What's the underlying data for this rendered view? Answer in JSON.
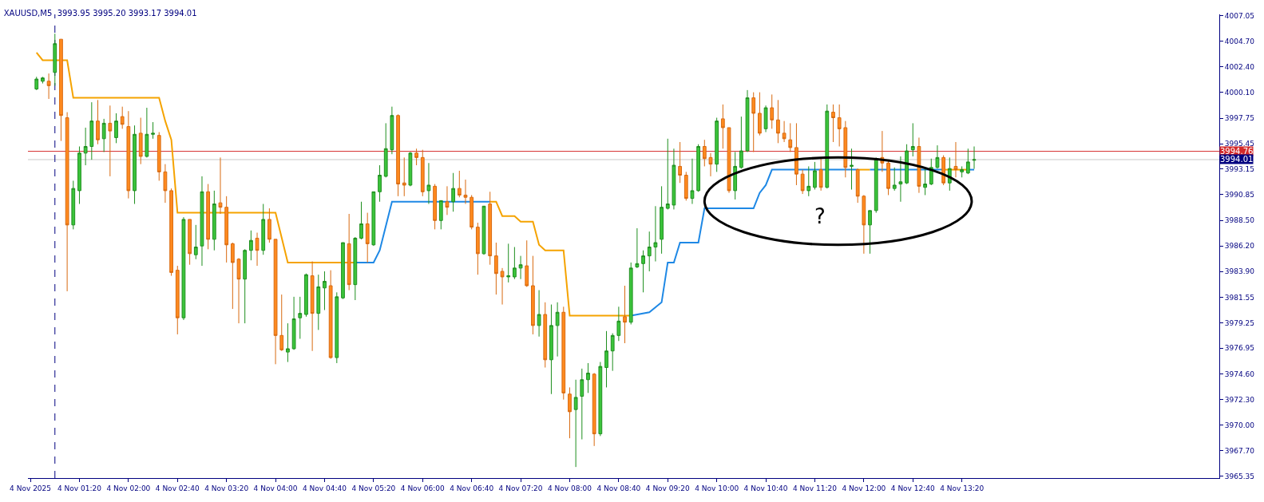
{
  "chart_data": {
    "type": "candlestick",
    "title": "XAUUSD,M5  3993.95 3995.20 3993.17 3994.01",
    "x": [
      "2025-11-04T00:45",
      "2025-11-04T00:50",
      "2025-11-04T00:55",
      "2025-11-04T01:00",
      "2025-11-04T01:05",
      "2025-11-04T01:10",
      "2025-11-04T01:15",
      "2025-11-04T01:20",
      "2025-11-04T01:25",
      "2025-11-04T01:30",
      "2025-11-04T01:35",
      "2025-11-04T01:40",
      "2025-11-04T01:45",
      "2025-11-04T01:50",
      "2025-11-04T01:55",
      "2025-11-04T02:00",
      "2025-11-04T02:05",
      "2025-11-04T02:10",
      "2025-11-04T02:15",
      "2025-11-04T02:20",
      "2025-11-04T02:25",
      "2025-11-04T02:30",
      "2025-11-04T02:35",
      "2025-11-04T02:40",
      "2025-11-04T02:45",
      "2025-11-04T02:50",
      "2025-11-04T02:55",
      "2025-11-04T03:00",
      "2025-11-04T03:05",
      "2025-11-04T03:10",
      "2025-11-04T03:15",
      "2025-11-04T03:20",
      "2025-11-04T03:25",
      "2025-11-04T03:30",
      "2025-11-04T03:35",
      "2025-11-04T03:40",
      "2025-11-04T03:45",
      "2025-11-04T03:50",
      "2025-11-04T03:55",
      "2025-11-04T04:00",
      "2025-11-04T04:05",
      "2025-11-04T04:10",
      "2025-11-04T04:15",
      "2025-11-04T04:20",
      "2025-11-04T04:25",
      "2025-11-04T04:30",
      "2025-11-04T04:35",
      "2025-11-04T04:40",
      "2025-11-04T04:45",
      "2025-11-04T04:50",
      "2025-11-04T04:55",
      "2025-11-04T05:00",
      "2025-11-04T05:05",
      "2025-11-04T05:10",
      "2025-11-04T05:15",
      "2025-11-04T05:20",
      "2025-11-04T05:25",
      "2025-11-04T05:30",
      "2025-11-04T05:35",
      "2025-11-04T05:40",
      "2025-11-04T05:45",
      "2025-11-04T05:50",
      "2025-11-04T05:55",
      "2025-11-04T06:00",
      "2025-11-04T06:05",
      "2025-11-04T06:10",
      "2025-11-04T06:15",
      "2025-11-04T06:20",
      "2025-11-04T06:25",
      "2025-11-04T06:30",
      "2025-11-04T06:35",
      "2025-11-04T06:40",
      "2025-11-04T06:45",
      "2025-11-04T06:50",
      "2025-11-04T06:55",
      "2025-11-04T07:00",
      "2025-11-04T07:05",
      "2025-11-04T07:10",
      "2025-11-04T07:15",
      "2025-11-04T07:20",
      "2025-11-04T07:25",
      "2025-11-04T07:30",
      "2025-11-04T07:35",
      "2025-11-04T07:40",
      "2025-11-04T07:45",
      "2025-11-04T07:50",
      "2025-11-04T07:55",
      "2025-11-04T08:00",
      "2025-11-04T08:05",
      "2025-11-04T08:10",
      "2025-11-04T08:15",
      "2025-11-04T08:20",
      "2025-11-04T08:25",
      "2025-11-04T08:30",
      "2025-11-04T08:35",
      "2025-11-04T08:40",
      "2025-11-04T08:45",
      "2025-11-04T08:50",
      "2025-11-04T08:55",
      "2025-11-04T09:00",
      "2025-11-04T09:05",
      "2025-11-04T09:10",
      "2025-11-04T09:15",
      "2025-11-04T09:20",
      "2025-11-04T09:25",
      "2025-11-04T09:30",
      "2025-11-04T09:35",
      "2025-11-04T09:40",
      "2025-11-04T09:45",
      "2025-11-04T09:50",
      "2025-11-04T09:55",
      "2025-11-04T10:00",
      "2025-11-04T10:05",
      "2025-11-04T10:10",
      "2025-11-04T10:15",
      "2025-11-04T10:20",
      "2025-11-04T10:25",
      "2025-11-04T10:30",
      "2025-11-04T10:35",
      "2025-11-04T10:40",
      "2025-11-04T10:45",
      "2025-11-04T10:50",
      "2025-11-04T10:55",
      "2025-11-04T11:00",
      "2025-11-04T11:05",
      "2025-11-04T11:10",
      "2025-11-04T11:15",
      "2025-11-04T11:20",
      "2025-11-04T11:25",
      "2025-11-04T11:30",
      "2025-11-04T11:35",
      "2025-11-04T11:40",
      "2025-11-04T11:45",
      "2025-11-04T11:50",
      "2025-11-04T11:55",
      "2025-11-04T12:00",
      "2025-11-04T12:05",
      "2025-11-04T12:10",
      "2025-11-04T12:15",
      "2025-11-04T12:20",
      "2025-11-04T12:25",
      "2025-11-04T12:30",
      "2025-11-04T12:35",
      "2025-11-04T12:40",
      "2025-11-04T12:45",
      "2025-11-04T12:50",
      "2025-11-04T12:55",
      "2025-11-04T13:00",
      "2025-11-04T13:05",
      "2025-11-04T13:10",
      "2025-11-04T13:15",
      "2025-11-04T13:20",
      "2025-11-04T13:25",
      "2025-11-04T13:30"
    ],
    "ohlc": [
      [
        4000.4,
        4001.5,
        4000.3,
        4001.3
      ],
      [
        4001.1,
        4001.5,
        4000.9,
        4001.4
      ],
      [
        4001.1,
        4001.8,
        3999.5,
        4000.7
      ],
      [
        4001.9,
        4005.4,
        4000.7,
        4004.5
      ],
      [
        4004.9,
        4004.9,
        3995.7,
        3998.0
      ],
      [
        3997.8,
        3998.3,
        3982.1,
        3988.1
      ],
      [
        3988.1,
        3992.1,
        3987.7,
        3991.4
      ],
      [
        3991.2,
        3995.2,
        3990.0,
        3994.6
      ],
      [
        3994.6,
        3996.9,
        3993.5,
        3995.2
      ],
      [
        3995.2,
        3999.2,
        3994.0,
        3997.5
      ],
      [
        3997.5,
        3999.4,
        3995.4,
        3995.8
      ],
      [
        3995.9,
        3997.7,
        3994.7,
        3997.3
      ],
      [
        3997.3,
        3998.9,
        3992.5,
        3996.6
      ],
      [
        3996.0,
        3998.2,
        3995.5,
        3997.5
      ],
      [
        3997.9,
        3998.8,
        3996.8,
        3997.2
      ],
      [
        3997.0,
        3998.4,
        3990.5,
        3991.2
      ],
      [
        3991.2,
        3997.1,
        3990.0,
        3996.3
      ],
      [
        3996.4,
        3997.8,
        3993.6,
        3994.3
      ],
      [
        3994.3,
        3998.7,
        3994.2,
        3996.3
      ],
      [
        3996.3,
        3997.4,
        3995.9,
        3996.4
      ],
      [
        3996.2,
        3996.5,
        3992.1,
        3992.9
      ],
      [
        3992.9,
        3993.6,
        3990.1,
        3991.2
      ],
      [
        3991.2,
        3991.4,
        3983.5,
        3983.8
      ],
      [
        3984.0,
        3984.4,
        3978.2,
        3979.7
      ],
      [
        3979.7,
        3988.8,
        3979.5,
        3988.6
      ],
      [
        3988.6,
        3988.6,
        3984.5,
        3985.5
      ],
      [
        3985.4,
        3988.1,
        3985.0,
        3986.1
      ],
      [
        3986.2,
        3992.5,
        3984.4,
        3991.1
      ],
      [
        3991.1,
        3991.8,
        3985.9,
        3986.8
      ],
      [
        3986.8,
        3991.2,
        3985.8,
        3990.0
      ],
      [
        3990.1,
        3994.2,
        3989.1,
        3989.7
      ],
      [
        3989.7,
        3990.7,
        3984.7,
        3986.3
      ],
      [
        3986.4,
        3986.5,
        3980.5,
        3984.7
      ],
      [
        3985.0,
        3985.1,
        3979.2,
        3983.2
      ],
      [
        3983.2,
        3985.9,
        3979.2,
        3985.8
      ],
      [
        3985.8,
        3987.6,
        3984.9,
        3986.7
      ],
      [
        3986.9,
        3987.4,
        3984.4,
        3985.8
      ],
      [
        3985.8,
        3990.0,
        3985.4,
        3988.6
      ],
      [
        3988.6,
        3989.6,
        3986.5,
        3986.8
      ],
      [
        3986.8,
        3986.8,
        3975.5,
        3978.1
      ],
      [
        3978.1,
        3981.8,
        3976.7,
        3976.8
      ],
      [
        3976.6,
        3979.2,
        3975.7,
        3976.9
      ],
      [
        3976.9,
        3981.6,
        3976.8,
        3979.6
      ],
      [
        3979.7,
        3981.6,
        3977.8,
        3980.1
      ],
      [
        3980.0,
        3983.7,
        3979.8,
        3983.6
      ],
      [
        3983.5,
        3984.8,
        3976.7,
        3980.1
      ],
      [
        3980.1,
        3983.6,
        3978.6,
        3982.5
      ],
      [
        3982.4,
        3983.9,
        3980.4,
        3983.0
      ],
      [
        3982.6,
        3984.0,
        3976.0,
        3976.1
      ],
      [
        3976.1,
        3982.0,
        3975.6,
        3981.6
      ],
      [
        3981.5,
        3986.5,
        3981.4,
        3986.5
      ],
      [
        3986.4,
        3989.1,
        3982.2,
        3982.7
      ],
      [
        3982.7,
        3987.0,
        3981.3,
        3986.9
      ],
      [
        3986.9,
        3990.2,
        3986.8,
        3988.2
      ],
      [
        3988.2,
        3989.2,
        3984.7,
        3986.4
      ],
      [
        3986.3,
        3991.1,
        3986.2,
        3991.1
      ],
      [
        3991.1,
        3993.5,
        3990.2,
        3992.6
      ],
      [
        3992.5,
        3997.3,
        3992.4,
        3995.0
      ],
      [
        3994.9,
        3998.8,
        3994.5,
        3998.0
      ],
      [
        3998.0,
        3998.1,
        3990.7,
        3991.8
      ],
      [
        3991.9,
        3994.2,
        3990.7,
        3991.7
      ],
      [
        3991.7,
        3994.7,
        3991.6,
        3994.6
      ],
      [
        3994.6,
        3995.0,
        3993.5,
        3994.2
      ],
      [
        3994.2,
        3994.9,
        3990.7,
        3991.1
      ],
      [
        3991.2,
        3993.7,
        3990.0,
        3991.7
      ],
      [
        3991.6,
        3991.8,
        3987.7,
        3988.5
      ],
      [
        3988.5,
        3990.3,
        3987.7,
        3990.3
      ],
      [
        3990.2,
        3991.6,
        3989.0,
        3989.7
      ],
      [
        3990.2,
        3992.8,
        3989.3,
        3991.4
      ],
      [
        3991.4,
        3993.0,
        3990.6,
        3990.8
      ],
      [
        3990.8,
        3992.2,
        3990.0,
        3990.6
      ],
      [
        3990.6,
        3990.8,
        3987.7,
        3987.9
      ],
      [
        3987.9,
        3988.3,
        3983.6,
        3985.5
      ],
      [
        3985.5,
        3989.8,
        3985.4,
        3989.8
      ],
      [
        3990.0,
        3991.1,
        3984.5,
        3985.3
      ],
      [
        3985.3,
        3986.5,
        3981.8,
        3983.7
      ],
      [
        3983.9,
        3984.2,
        3980.9,
        3983.4
      ],
      [
        3983.4,
        3986.4,
        3982.9,
        3983.5
      ],
      [
        3983.4,
        3986.1,
        3983.2,
        3984.2
      ],
      [
        3984.2,
        3985.3,
        3983.2,
        3984.5
      ],
      [
        3984.4,
        3986.7,
        3982.5,
        3982.6
      ],
      [
        3982.6,
        3985.3,
        3978.2,
        3979.0
      ],
      [
        3979.0,
        3982.2,
        3978.0,
        3980.0
      ],
      [
        3980.0,
        3981.1,
        3975.2,
        3975.9
      ],
      [
        3975.9,
        3980.9,
        3972.8,
        3979.0
      ],
      [
        3979.0,
        3981.1,
        3976.2,
        3980.2
      ],
      [
        3980.2,
        3980.7,
        3972.3,
        3972.9
      ],
      [
        3972.8,
        3973.4,
        3968.8,
        3971.2
      ],
      [
        3971.4,
        3974.1,
        3966.2,
        3972.5
      ],
      [
        3972.6,
        3975.1,
        3968.7,
        3974.1
      ],
      [
        3974.1,
        3975.6,
        3972.9,
        3974.7
      ],
      [
        3974.6,
        3974.7,
        3968.1,
        3969.2
      ],
      [
        3969.2,
        3975.7,
        3969.0,
        3975.3
      ],
      [
        3975.2,
        3978.5,
        3973.4,
        3976.7
      ],
      [
        3976.7,
        3978.3,
        3974.9,
        3978.1
      ],
      [
        3978.1,
        3980.7,
        3977.6,
        3979.4
      ],
      [
        3979.8,
        3982.6,
        3977.4,
        3979.3
      ],
      [
        3979.3,
        3984.7,
        3979.1,
        3984.2
      ],
      [
        3984.3,
        3987.8,
        3984.2,
        3984.6
      ],
      [
        3984.6,
        3985.8,
        3982.0,
        3985.3
      ],
      [
        3985.3,
        3987.5,
        3983.9,
        3986.1
      ],
      [
        3986.1,
        3989.8,
        3984.8,
        3986.5
      ],
      [
        3986.8,
        3991.6,
        3985.5,
        3989.7
      ],
      [
        3989.6,
        3995.9,
        3989.5,
        3990.0
      ],
      [
        3989.9,
        3995.0,
        3989.5,
        3993.5
      ],
      [
        3993.4,
        3995.6,
        3991.9,
        3992.6
      ],
      [
        3992.6,
        3992.9,
        3990.3,
        3990.5
      ],
      [
        3990.5,
        3994.1,
        3990.0,
        3991.2
      ],
      [
        3991.2,
        3995.4,
        3991.1,
        3995.2
      ],
      [
        3995.2,
        3995.8,
        3993.4,
        3994.1
      ],
      [
        3994.2,
        3994.6,
        3992.5,
        3993.6
      ],
      [
        3993.6,
        3997.8,
        3992.9,
        3997.5
      ],
      [
        3997.7,
        3999.0,
        3995.0,
        3996.9
      ],
      [
        3996.9,
        3996.9,
        3991.0,
        3991.2
      ],
      [
        3991.2,
        3994.7,
        3990.4,
        3993.4
      ],
      [
        3993.3,
        3997.9,
        3993.2,
        3994.8
      ],
      [
        3994.8,
        4000.3,
        3994.7,
        3999.6
      ],
      [
        3999.6,
        4000.1,
        3994.7,
        3998.2
      ],
      [
        3998.2,
        4000.1,
        3996.2,
        3996.4
      ],
      [
        3996.8,
        3998.9,
        3996.5,
        3998.7
      ],
      [
        3998.7,
        3999.9,
        3996.8,
        3997.6
      ],
      [
        3997.6,
        3999.4,
        3995.5,
        3996.4
      ],
      [
        3996.4,
        3997.5,
        3995.6,
        3995.9
      ],
      [
        3995.8,
        3997.3,
        3994.7,
        3995.1
      ],
      [
        3995.1,
        3997.3,
        3991.7,
        3992.7
      ],
      [
        3992.7,
        3993.1,
        3990.9,
        3991.2
      ],
      [
        3991.2,
        3993.4,
        3990.7,
        3991.6
      ],
      [
        3991.5,
        3993.8,
        3991.3,
        3993.0
      ],
      [
        3993.1,
        3994.1,
        3991.2,
        3991.5
      ],
      [
        3991.5,
        3999.0,
        3991.4,
        3998.4
      ],
      [
        3998.3,
        3999.0,
        3995.6,
        3997.8
      ],
      [
        3997.8,
        3999.0,
        3995.2,
        3996.8
      ],
      [
        3996.9,
        3997.5,
        3992.4,
        3993.3
      ],
      [
        3993.4,
        3995.0,
        3991.3,
        3993.5
      ],
      [
        3993.1,
        3993.2,
        3990.1,
        3990.7
      ],
      [
        3990.7,
        3990.8,
        3985.5,
        3988.1
      ],
      [
        3988.1,
        3989.4,
        3985.5,
        3989.4
      ],
      [
        3989.4,
        3994.2,
        3989.2,
        3994.1
      ],
      [
        3994.2,
        3996.6,
        3992.9,
        3993.7
      ],
      [
        3993.7,
        3994.0,
        3990.8,
        3991.4
      ],
      [
        3991.4,
        3993.3,
        3991.2,
        3991.7
      ],
      [
        3991.8,
        3994.3,
        3990.2,
        3992.0
      ],
      [
        3991.9,
        3995.4,
        3991.8,
        3994.8
      ],
      [
        3994.9,
        3997.3,
        3994.3,
        3995.2
      ],
      [
        3995.2,
        3996.0,
        3991.0,
        3991.6
      ],
      [
        3991.5,
        3993.3,
        3990.8,
        3991.8
      ],
      [
        3991.8,
        3994.1,
        3991.7,
        3993.3
      ],
      [
        3993.3,
        3995.3,
        3993.2,
        3994.2
      ],
      [
        3994.2,
        3994.4,
        3991.7,
        3991.9
      ],
      [
        3991.9,
        3994.2,
        3991.2,
        3993.2
      ],
      [
        3993.4,
        3995.6,
        3992.4,
        3993.1
      ],
      [
        3992.9,
        3993.4,
        3992.4,
        3993.1
      ],
      [
        3992.8,
        3995.0,
        3992.7,
        3993.8
      ],
      [
        3993.95,
        3995.2,
        3993.17,
        3994.01
      ]
    ],
    "series": [
      {
        "type": "line",
        "color": "#f5a300",
        "x": [
          "2025-11-04T00:45",
          "2025-11-04T00:50",
          "2025-11-04T01:10",
          "2025-11-04T01:15",
          "2025-11-04T02:25",
          "2025-11-04T02:30",
          "2025-11-04T02:35",
          "2025-11-04T02:40",
          "2025-11-04T04:00",
          "2025-11-04T04:10",
          "2025-11-04T05:05",
          "2025-11-04T06:00",
          "2025-11-04T06:55",
          "2025-11-04T07:00",
          "2025-11-04T07:05",
          "2025-11-04T07:15",
          "2025-11-04T07:20",
          "2025-11-04T07:30",
          "2025-11-04T07:35",
          "2025-11-04T07:40",
          "2025-11-04T07:55",
          "2025-11-04T08:00",
          "2025-11-04T08:50",
          "2025-11-04T10:00",
          "2025-11-04T11:55",
          "2025-11-04T12:05",
          "2025-11-04T12:30",
          "2025-11-04T13:05",
          "2025-11-04T13:25"
        ],
        "values": [
          4003.7,
          4003.0,
          4003.0,
          3999.6,
          3999.6,
          3997.5,
          3995.8,
          3989.2,
          3989.2,
          3984.7,
          3984.7,
          null,
          3990.2,
          3990.2,
          3988.9,
          3988.9,
          3988.4,
          3988.4,
          3986.3,
          3985.8,
          3985.8,
          3979.9,
          3979.9,
          null,
          3993.1,
          3993.1,
          null,
          3993.1,
          3993.1
        ]
      },
      {
        "type": "line",
        "color": "#1e88e5",
        "x": [
          "2025-11-04T05:05",
          "2025-11-04T05:20",
          "2025-11-04T05:25",
          "2025-11-04T05:35",
          "2025-11-04T06:55",
          "2025-11-04T08:00",
          "2025-11-04T08:50",
          "2025-11-04T09:05",
          "2025-11-04T09:15",
          "2025-11-04T09:20",
          "2025-11-04T09:25",
          "2025-11-04T09:30",
          "2025-11-04T09:45",
          "2025-11-04T09:50",
          "2025-11-04T10:30",
          "2025-11-04T10:35",
          "2025-11-04T10:40",
          "2025-11-04T10:45",
          "2025-11-04T11:55",
          "2025-11-04T12:00",
          "2025-11-04T12:05",
          "2025-11-04T13:05",
          "2025-11-04T13:15",
          "2025-11-04T13:25",
          "2025-11-04T13:30"
        ],
        "values": [
          3984.7,
          3984.7,
          3985.8,
          3990.2,
          3990.2,
          null,
          3979.9,
          3980.2,
          3981.1,
          3984.7,
          3984.7,
          3986.5,
          3986.5,
          3989.6,
          3989.6,
          3991.0,
          3991.7,
          3993.1,
          3993.1,
          null,
          3993.1,
          3993.1,
          null,
          3993.1,
          3993.1
        ]
      }
    ],
    "xlim": [
      "2025-11-04T00:38",
      "2025-11-04T16:50"
    ],
    "xticks": [
      {
        "value": "2025-11-04T00:40",
        "label": "4 Nov 2025"
      },
      {
        "value": "2025-11-04T01:20",
        "label": "4 Nov 01:20"
      },
      {
        "value": "2025-11-04T02:00",
        "label": "4 Nov 02:00"
      },
      {
        "value": "2025-11-04T02:40",
        "label": "4 Nov 02:40"
      },
      {
        "value": "2025-11-04T03:20",
        "label": "4 Nov 03:20"
      },
      {
        "value": "2025-11-04T04:00",
        "label": "4 Nov 04:00"
      },
      {
        "value": "2025-11-04T04:40",
        "label": "4 Nov 04:40"
      },
      {
        "value": "2025-11-04T05:20",
        "label": "4 Nov 05:20"
      },
      {
        "value": "2025-11-04T06:00",
        "label": "4 Nov 06:00"
      },
      {
        "value": "2025-11-04T06:40",
        "label": "4 Nov 06:40"
      },
      {
        "value": "2025-11-04T07:20",
        "label": "4 Nov 07:20"
      },
      {
        "value": "2025-11-04T08:00",
        "label": "4 Nov 08:00"
      },
      {
        "value": "2025-11-04T08:40",
        "label": "4 Nov 08:40"
      },
      {
        "value": "2025-11-04T09:20",
        "label": "4 Nov 09:20"
      },
      {
        "value": "2025-11-04T10:00",
        "label": "4 Nov 10:00"
      },
      {
        "value": "2025-11-04T10:40",
        "label": "4 Nov 10:40"
      },
      {
        "value": "2025-11-04T11:20",
        "label": "4 Nov 11:20"
      },
      {
        "value": "2025-11-04T12:00",
        "label": "4 Nov 12:00"
      },
      {
        "value": "2025-11-04T12:40",
        "label": "4 Nov 12:40"
      },
      {
        "value": "2025-11-04T13:20",
        "label": "4 Nov 13:20"
      }
    ],
    "ylim": [
      3965.2,
      4007.15
    ],
    "yticks": [
      {
        "value": 4007.05,
        "label": "4007.05"
      },
      {
        "value": 4004.7,
        "label": "4004.70"
      },
      {
        "value": 4002.4,
        "label": "4002.40"
      },
      {
        "value": 4000.1,
        "label": "4000.10"
      },
      {
        "value": 3997.75,
        "label": "3997.75"
      },
      {
        "value": 3995.45,
        "label": "3995.45"
      },
      {
        "value": 3993.15,
        "label": "3993.15"
      },
      {
        "value": 3990.85,
        "label": "3990.85"
      },
      {
        "value": 3988.5,
        "label": "3988.50"
      },
      {
        "value": 3986.2,
        "label": "3986.20"
      },
      {
        "value": 3983.9,
        "label": "3983.90"
      },
      {
        "value": 3981.55,
        "label": "3981.55"
      },
      {
        "value": 3979.25,
        "label": "3979.25"
      },
      {
        "value": 3976.95,
        "label": "3976.95"
      },
      {
        "value": 3974.6,
        "label": "3974.60"
      },
      {
        "value": 3972.3,
        "label": "3972.30"
      },
      {
        "value": 3970.0,
        "label": "3970.00"
      },
      {
        "value": 3967.7,
        "label": "3967.70"
      },
      {
        "value": 3965.35,
        "label": "3965.35"
      }
    ],
    "ref_lines": [
      {
        "axis": "y",
        "value": 3994.76,
        "label": "3994.76",
        "color": "#d42a2a",
        "line_style": "solid"
      },
      {
        "axis": "y",
        "value": 3994.01,
        "label": "3994.01",
        "color": "#c8c8c8",
        "line_style": "solid"
      },
      {
        "axis": "x",
        "value": "2025-11-04T01:00",
        "color": "#000080",
        "line_style": "dashed"
      }
    ],
    "annotations": [
      "?"
    ],
    "grid": false
  }
}
